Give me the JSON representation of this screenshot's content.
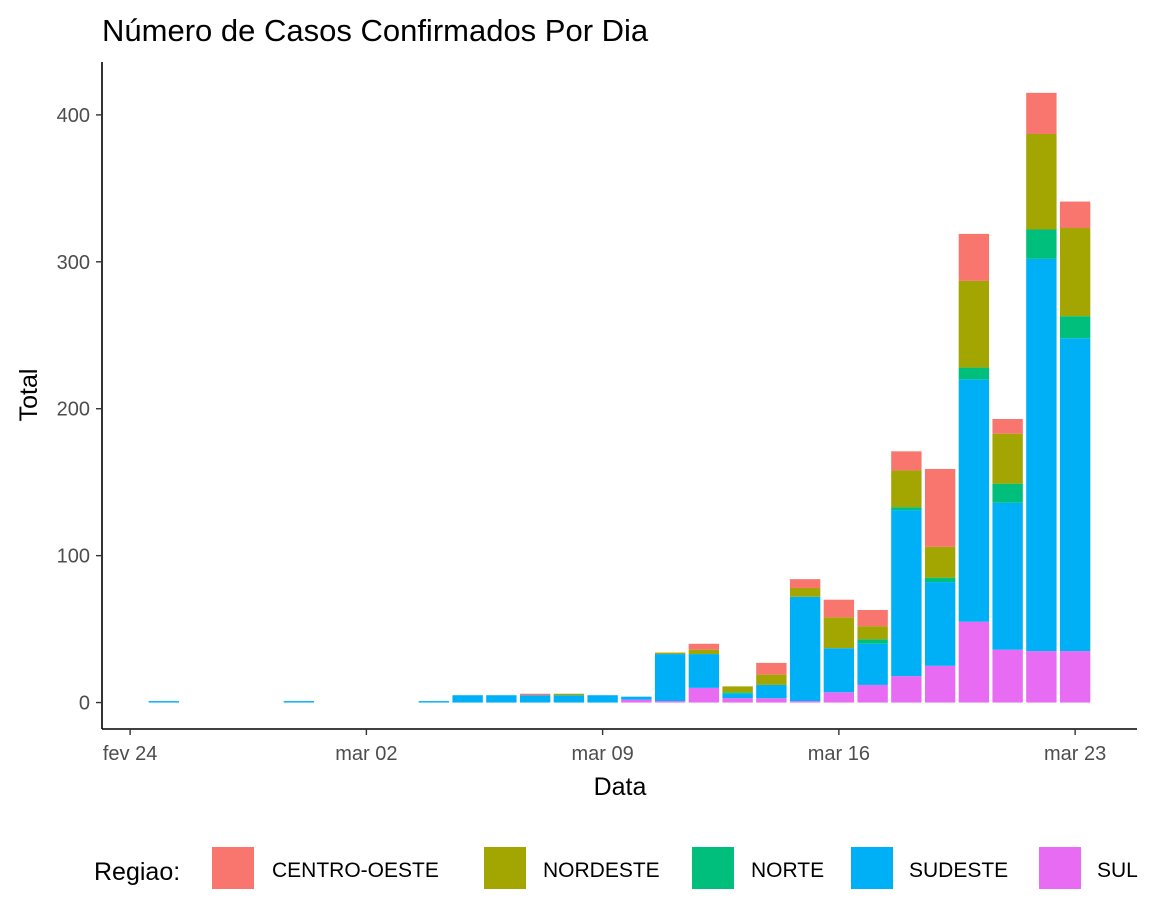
{
  "chart_data": {
    "type": "bar",
    "stacked": true,
    "title": "Número de Casos Confirmados Por Dia",
    "xlabel": "Data",
    "ylabel": "Total",
    "ylim": [
      -18,
      436
    ],
    "yticks": [
      0,
      100,
      200,
      300,
      400
    ],
    "x_axis": {
      "type": "date",
      "range": [
        "2020-02-23T04:00",
        "2020-03-24T20:00"
      ],
      "ticks": [
        {
          "date": "2020-02-24",
          "label": "fev 24"
        },
        {
          "date": "2020-03-02",
          "label": "mar 02"
        },
        {
          "date": "2020-03-09",
          "label": "mar 09"
        },
        {
          "date": "2020-03-16",
          "label": "mar 16"
        },
        {
          "date": "2020-03-23",
          "label": "mar 23"
        }
      ]
    },
    "grid": false,
    "legend": {
      "title": "Regiao:",
      "position": "bottom",
      "entries": [
        "CENTRO-OESTE",
        "NORDESTE",
        "NORTE",
        "SUDESTE",
        "SUL"
      ]
    },
    "stack_order_bottom_to_top": [
      "SUL",
      "SUDESTE",
      "NORTE",
      "NORDESTE",
      "CENTRO-OESTE"
    ],
    "colors": {
      "CENTRO-OESTE": "#F8766D",
      "NORDESTE": "#A3A500",
      "NORTE": "#00BF7D",
      "SUDESTE": "#00B0F6",
      "SUL": "#E76BF3"
    },
    "x": [
      "2020-02-25",
      "2020-02-26",
      "2020-02-27",
      "2020-02-28",
      "2020-02-29",
      "2020-03-01",
      "2020-03-02",
      "2020-03-03",
      "2020-03-04",
      "2020-03-05",
      "2020-03-06",
      "2020-03-07",
      "2020-03-08",
      "2020-03-09",
      "2020-03-10",
      "2020-03-11",
      "2020-03-12",
      "2020-03-13",
      "2020-03-14",
      "2020-03-15",
      "2020-03-16",
      "2020-03-17",
      "2020-03-18",
      "2020-03-19",
      "2020-03-20",
      "2020-03-21",
      "2020-03-22",
      "2020-03-23"
    ],
    "series": [
      {
        "name": "SUL",
        "values": [
          0,
          0,
          0,
          0,
          0,
          0,
          0,
          0,
          0,
          0,
          0,
          0,
          0,
          0,
          2,
          1,
          10,
          3,
          3,
          1,
          7,
          12,
          18,
          25,
          55,
          36,
          35,
          35
        ]
      },
      {
        "name": "SUDESTE",
        "values": [
          1,
          0,
          0,
          0,
          1,
          0,
          0,
          0,
          1,
          5,
          5,
          5,
          5,
          5,
          2,
          32,
          23,
          3,
          9,
          71,
          30,
          28,
          113,
          57,
          165,
          100,
          267,
          213
        ]
      },
      {
        "name": "NORTE",
        "values": [
          0,
          0,
          0,
          0,
          0,
          0,
          0,
          0,
          0,
          0,
          0,
          0,
          0,
          0,
          0,
          0,
          0,
          1,
          0,
          0,
          0,
          3,
          2,
          3,
          8,
          13,
          20,
          15
        ]
      },
      {
        "name": "NORDESTE",
        "values": [
          0,
          0,
          0,
          0,
          0,
          0,
          0,
          0,
          0,
          0,
          0,
          0,
          1,
          0,
          0,
          1,
          3,
          4,
          7,
          6,
          21,
          9,
          25,
          21,
          59,
          34,
          65,
          60
        ]
      },
      {
        "name": "CENTRO-OESTE",
        "values": [
          0,
          0,
          0,
          0,
          0,
          0,
          0,
          0,
          0,
          0,
          0,
          1,
          0,
          0,
          0,
          0,
          4,
          0,
          8,
          6,
          12,
          11,
          13,
          53,
          32,
          10,
          28,
          18
        ]
      }
    ]
  }
}
